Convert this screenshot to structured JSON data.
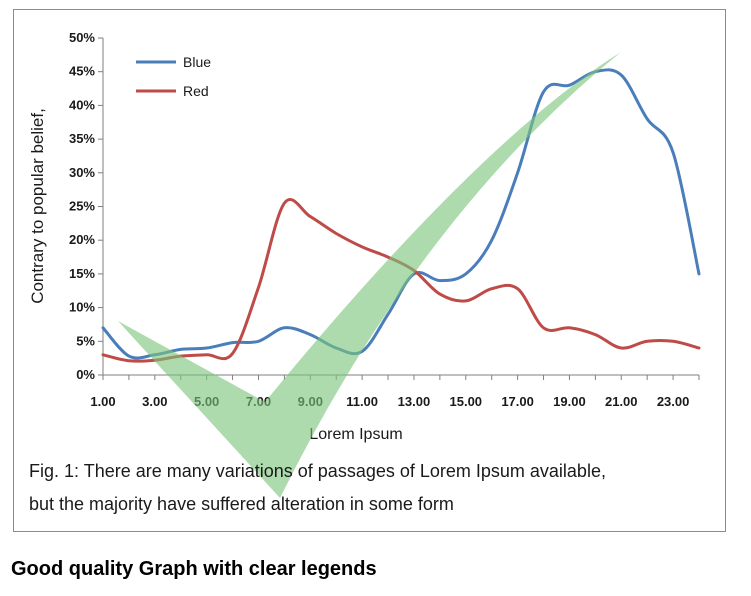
{
  "caption_line1": "Fig. 1: There are many variations of passages of Lorem Ipsum available,",
  "caption_line2": "but the majority have suffered alteration in some form",
  "bottom_title": "Good quality Graph with clear legends",
  "chart_data": {
    "type": "line",
    "xlabel": "Lorem Ipsum",
    "ylabel": "Contrary to popular belief,",
    "xlim": [
      1,
      24
    ],
    "ylim": [
      0,
      50
    ],
    "x_ticks": [
      1,
      3,
      5,
      7,
      9,
      11,
      13,
      15,
      17,
      19,
      21,
      23
    ],
    "x_tick_labels": [
      "1.00",
      "3.00",
      "5.00",
      "7.00",
      "9.00",
      "11.00",
      "13.00",
      "15.00",
      "17.00",
      "19.00",
      "21.00",
      "23.00"
    ],
    "y_ticks": [
      0,
      5,
      10,
      15,
      20,
      25,
      30,
      35,
      40,
      45,
      50
    ],
    "y_tick_labels": [
      "0%",
      "5%",
      "10%",
      "15%",
      "20%",
      "25%",
      "30%",
      "35%",
      "40%",
      "45%",
      "50%"
    ],
    "grid": false,
    "legend_position": "top-left",
    "x": [
      1,
      2,
      3,
      4,
      5,
      6,
      7,
      8,
      9,
      10,
      11,
      12,
      13,
      14,
      15,
      16,
      17,
      18,
      19,
      20,
      21,
      22,
      23,
      24
    ],
    "series": [
      {
        "name": "Blue",
        "color": "#4a7ebb",
        "values": [
          7,
          2.8,
          3,
          3.8,
          4,
          4.8,
          5,
          7,
          6,
          4,
          3.5,
          9,
          15,
          14,
          15,
          20,
          30,
          42,
          43,
          45,
          44.5,
          38,
          33,
          15
        ]
      },
      {
        "name": "Red",
        "color": "#be4b48",
        "values": [
          3,
          2.1,
          2.2,
          2.8,
          3,
          3.2,
          13,
          25.5,
          23.5,
          21,
          19,
          17.5,
          15.5,
          12,
          11,
          12.8,
          12.8,
          7,
          7,
          6,
          4,
          5,
          5,
          4
        ]
      }
    ],
    "annotations": [
      {
        "type": "checkmark",
        "color": "#7ac57a",
        "opacity": 0.62
      }
    ]
  }
}
